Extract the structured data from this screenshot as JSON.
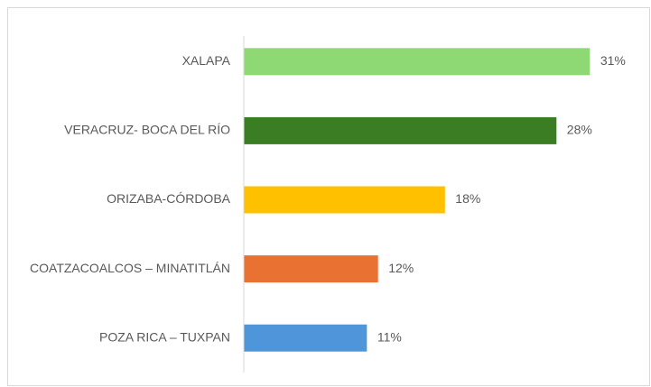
{
  "chart_data": {
    "type": "bar",
    "orientation": "horizontal",
    "categories": [
      "XALAPA",
      "VERACRUZ- BOCA DEL RÍO",
      "ORIZABA-CÓRDOBA",
      "COATZACOALCOS – MINATITLÁN",
      "POZA RICA – TUXPAN"
    ],
    "values": [
      31,
      28,
      18,
      12,
      11
    ],
    "value_labels": [
      "31%",
      "28%",
      "18%",
      "12%",
      "11%"
    ],
    "colors": [
      "#8ed973",
      "#3a7d22",
      "#ffc000",
      "#e97132",
      "#4e95d9"
    ]
  }
}
